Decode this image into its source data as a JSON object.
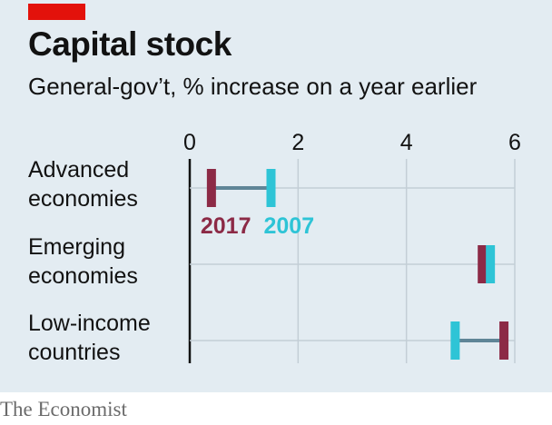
{
  "header": {
    "title": "Capital stock",
    "subtitle": "General-gov’t, % increase on a year earlier"
  },
  "footer": {
    "source": "The Economist"
  },
  "colors": {
    "y2017": "#8c2a46",
    "y2007": "#2ec4d6",
    "connector": "#5f8597",
    "grid": "#c3ced6",
    "axis": "#121212",
    "accent": "#e3120b",
    "background": "#e3ecf2"
  },
  "chart_data": {
    "type": "dumbbell",
    "title": "Capital stock",
    "subtitle": "General-gov’t, % increase on a year earlier",
    "xlim": [
      0,
      6
    ],
    "xticks": [
      "0",
      "2",
      "4",
      "6"
    ],
    "grid": true,
    "categories": [
      [
        "Advanced",
        "economies"
      ],
      [
        "Emerging",
        "economies"
      ],
      [
        "Low-income",
        "countries"
      ]
    ],
    "series": [
      {
        "name": "2017",
        "values": [
          0.4,
          5.4,
          5.8
        ]
      },
      {
        "name": "2007",
        "values": [
          1.5,
          5.55,
          4.9
        ]
      }
    ],
    "inline_legend": {
      "labels": [
        "2017",
        "2007"
      ],
      "row": 0
    }
  }
}
